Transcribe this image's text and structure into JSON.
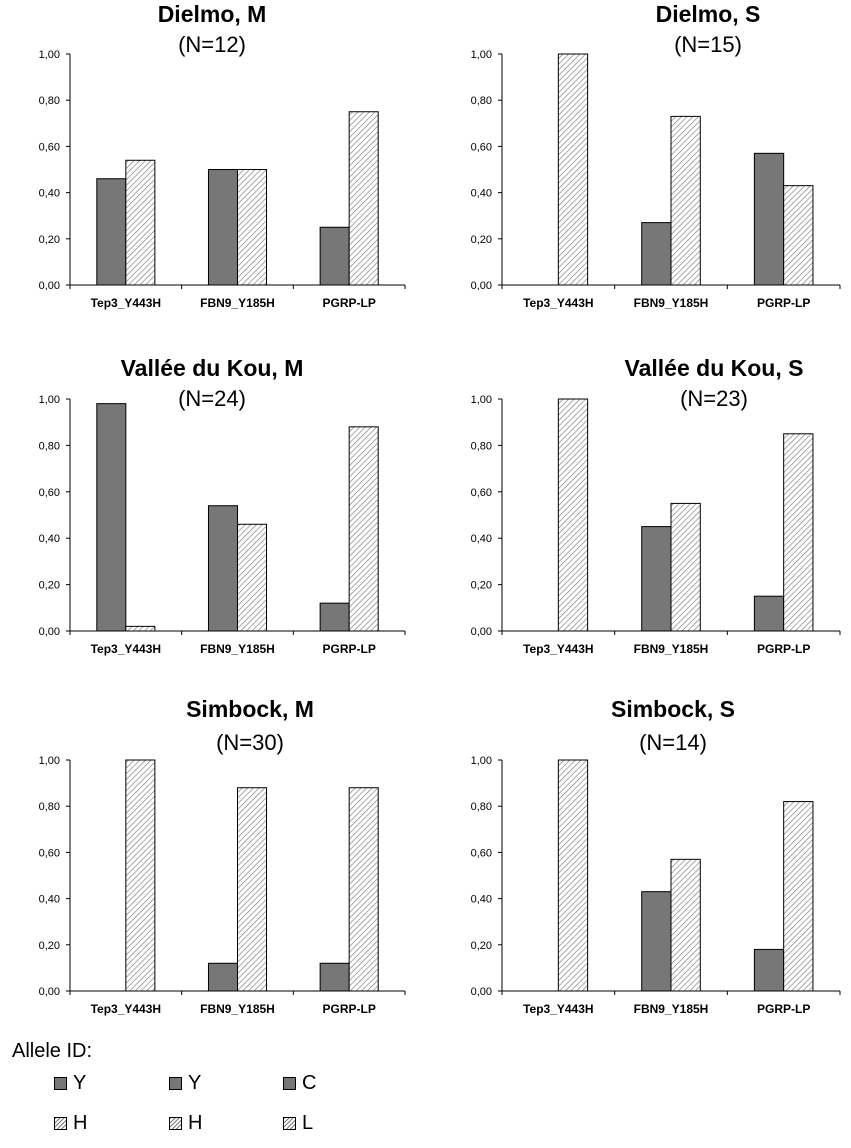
{
  "chart_data": [
    {
      "type": "bar",
      "title": "Dielmo, M",
      "subtitle": "(N=12)",
      "categories": [
        "Tep3_Y443H",
        "FBN9_Y185H",
        "PGRP-LP"
      ],
      "series": [
        {
          "values": [
            0.46,
            0.5,
            0.25
          ]
        },
        {
          "values": [
            0.54,
            0.5,
            0.75
          ]
        }
      ],
      "ylim": [
        0,
        1
      ],
      "yticks": [
        "0,00",
        "0,20",
        "0,40",
        "0,60",
        "0,80",
        "1,00"
      ]
    },
    {
      "type": "bar",
      "title": "Dielmo, S",
      "subtitle": "(N=15)",
      "categories": [
        "Tep3_Y443H",
        "FBN9_Y185H",
        "PGRP-LP"
      ],
      "series": [
        {
          "values": [
            0.0,
            0.27,
            0.57
          ]
        },
        {
          "values": [
            1.0,
            0.73,
            0.43
          ]
        }
      ],
      "ylim": [
        0,
        1
      ],
      "yticks": [
        "0,00",
        "0,20",
        "0,40",
        "0,60",
        "0,80",
        "1,00"
      ]
    },
    {
      "type": "bar",
      "title": "Vallée du Kou, M",
      "subtitle": "(N=24)",
      "categories": [
        "Tep3_Y443H",
        "FBN9_Y185H",
        "PGRP-LP"
      ],
      "series": [
        {
          "values": [
            0.98,
            0.54,
            0.12
          ]
        },
        {
          "values": [
            0.02,
            0.46,
            0.88
          ]
        }
      ],
      "ylim": [
        0,
        1
      ],
      "yticks": [
        "0,00",
        "0,20",
        "0,40",
        "0,60",
        "0,80",
        "1,00"
      ]
    },
    {
      "type": "bar",
      "title": "Vallée du Kou, S",
      "subtitle": "(N=23)",
      "categories": [
        "Tep3_Y443H",
        "FBN9_Y185H",
        "PGRP-LP"
      ],
      "series": [
        {
          "values": [
            0.0,
            0.45,
            0.15
          ]
        },
        {
          "values": [
            1.0,
            0.55,
            0.85
          ]
        }
      ],
      "ylim": [
        0,
        1
      ],
      "yticks": [
        "0,00",
        "0,20",
        "0,40",
        "0,60",
        "0,80",
        "1,00"
      ]
    },
    {
      "type": "bar",
      "title": "Simbock, M",
      "subtitle": "(N=30)",
      "categories": [
        "Tep3_Y443H",
        "FBN9_Y185H",
        "PGRP-LP"
      ],
      "series": [
        {
          "values": [
            0.0,
            0.12,
            0.12
          ]
        },
        {
          "values": [
            1.0,
            0.88,
            0.88
          ]
        }
      ],
      "ylim": [
        0,
        1
      ],
      "yticks": [
        "0,00",
        "0,20",
        "0,40",
        "0,60",
        "0,80",
        "1,00"
      ]
    },
    {
      "type": "bar",
      "title": "Simbock, S",
      "subtitle": "(N=14)",
      "categories": [
        "Tep3_Y443H",
        "FBN9_Y185H",
        "PGRP-LP"
      ],
      "series": [
        {
          "values": [
            0.0,
            0.43,
            0.18
          ]
        },
        {
          "values": [
            1.0,
            0.57,
            0.82
          ]
        }
      ],
      "ylim": [
        0,
        1
      ],
      "yticks": [
        "0,00",
        "0,20",
        "0,40",
        "0,60",
        "0,80",
        "1,00"
      ]
    }
  ],
  "legend": {
    "title": "Allele ID:",
    "row1": [
      "Y",
      "Y",
      "C"
    ],
    "row2": [
      "H",
      "H",
      "L"
    ]
  },
  "colors": {
    "solid_fill": "#777777",
    "hatch_line": "#7a7a7a",
    "axis": "#000000"
  }
}
